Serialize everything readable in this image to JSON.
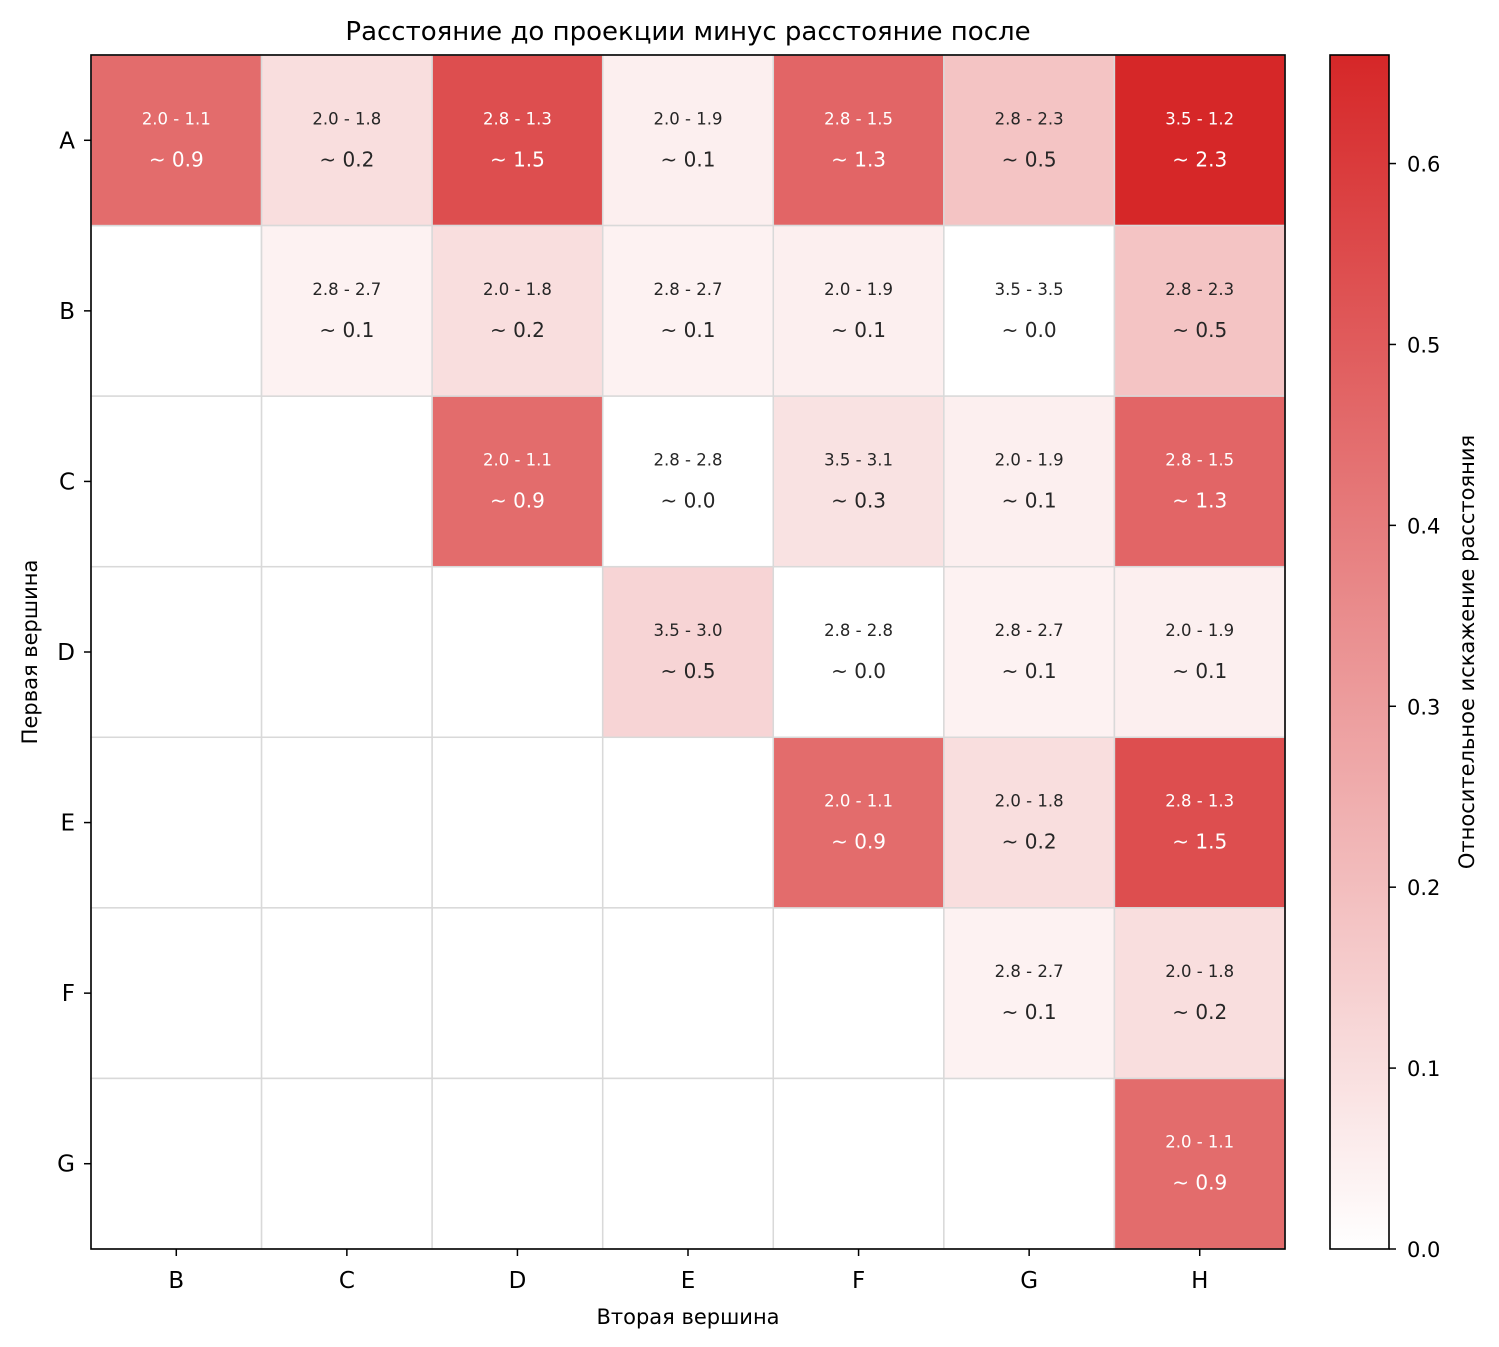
{
  "chart_data": {
    "type": "heatmap",
    "title": "Расстояние до проекции минус расстояние после",
    "xlabel": "Вторая вершина",
    "ylabel": "Первая вершина",
    "colorbar_label": "Относительное искажение расстояния",
    "x_categories": [
      "B",
      "C",
      "D",
      "E",
      "F",
      "G",
      "H"
    ],
    "y_categories": [
      "A",
      "B",
      "C",
      "D",
      "E",
      "F",
      "G"
    ],
    "colorbar": {
      "min": 0.0,
      "max": 0.66,
      "ticks": [
        "0.0",
        "0.1",
        "0.2",
        "0.3",
        "0.4",
        "0.5",
        "0.6"
      ],
      "colors": [
        "#ffffff",
        "#d62728"
      ]
    },
    "cells": [
      {
        "row": "A",
        "col": "B",
        "label": "2.0 - 1.1",
        "diff": "~ 0.9",
        "value": 0.45
      },
      {
        "row": "A",
        "col": "C",
        "label": "2.0 - 1.8",
        "diff": "~ 0.2",
        "value": 0.1
      },
      {
        "row": "A",
        "col": "D",
        "label": "2.8 - 1.3",
        "diff": "~ 1.5",
        "value": 0.54
      },
      {
        "row": "A",
        "col": "E",
        "label": "2.0 - 1.9",
        "diff": "~ 0.1",
        "value": 0.05
      },
      {
        "row": "A",
        "col": "F",
        "label": "2.8 - 1.5",
        "diff": "~ 1.3",
        "value": 0.47
      },
      {
        "row": "A",
        "col": "G",
        "label": "2.8 - 2.3",
        "diff": "~ 0.5",
        "value": 0.18
      },
      {
        "row": "A",
        "col": "H",
        "label": "3.5 - 1.2",
        "diff": "~ 2.3",
        "value": 0.66
      },
      {
        "row": "B",
        "col": "C",
        "label": "2.8 - 2.7",
        "diff": "~ 0.1",
        "value": 0.04
      },
      {
        "row": "B",
        "col": "D",
        "label": "2.0 - 1.8",
        "diff": "~ 0.2",
        "value": 0.1
      },
      {
        "row": "B",
        "col": "E",
        "label": "2.8 - 2.7",
        "diff": "~ 0.1",
        "value": 0.04
      },
      {
        "row": "B",
        "col": "F",
        "label": "2.0 - 1.9",
        "diff": "~ 0.1",
        "value": 0.05
      },
      {
        "row": "B",
        "col": "G",
        "label": "3.5 - 3.5",
        "diff": "~ 0.0",
        "value": 0.0
      },
      {
        "row": "B",
        "col": "H",
        "label": "2.8 - 2.3",
        "diff": "~ 0.5",
        "value": 0.18
      },
      {
        "row": "C",
        "col": "D",
        "label": "2.0 - 1.1",
        "diff": "~ 0.9",
        "value": 0.45
      },
      {
        "row": "C",
        "col": "E",
        "label": "2.8 - 2.8",
        "diff": "~ 0.0",
        "value": 0.0
      },
      {
        "row": "C",
        "col": "F",
        "label": "3.5 - 3.1",
        "diff": "~ 0.3",
        "value": 0.09
      },
      {
        "row": "C",
        "col": "G",
        "label": "2.0 - 1.9",
        "diff": "~ 0.1",
        "value": 0.05
      },
      {
        "row": "C",
        "col": "H",
        "label": "2.8 - 1.5",
        "diff": "~ 1.3",
        "value": 0.47
      },
      {
        "row": "D",
        "col": "E",
        "label": "3.5 - 3.0",
        "diff": "~ 0.5",
        "value": 0.13
      },
      {
        "row": "D",
        "col": "F",
        "label": "2.8 - 2.8",
        "diff": "~ 0.0",
        "value": 0.0
      },
      {
        "row": "D",
        "col": "G",
        "label": "2.8 - 2.7",
        "diff": "~ 0.1",
        "value": 0.04
      },
      {
        "row": "D",
        "col": "H",
        "label": "2.0 - 1.9",
        "diff": "~ 0.1",
        "value": 0.05
      },
      {
        "row": "E",
        "col": "F",
        "label": "2.0 - 1.1",
        "diff": "~ 0.9",
        "value": 0.45
      },
      {
        "row": "E",
        "col": "G",
        "label": "2.0 - 1.8",
        "diff": "~ 0.2",
        "value": 0.1
      },
      {
        "row": "E",
        "col": "H",
        "label": "2.8 - 1.3",
        "diff": "~ 1.5",
        "value": 0.54
      },
      {
        "row": "F",
        "col": "G",
        "label": "2.8 - 2.7",
        "diff": "~ 0.1",
        "value": 0.04
      },
      {
        "row": "F",
        "col": "H",
        "label": "2.0 - 1.8",
        "diff": "~ 0.2",
        "value": 0.1
      },
      {
        "row": "G",
        "col": "H",
        "label": "2.0 - 1.1",
        "diff": "~ 0.9",
        "value": 0.45
      }
    ]
  }
}
